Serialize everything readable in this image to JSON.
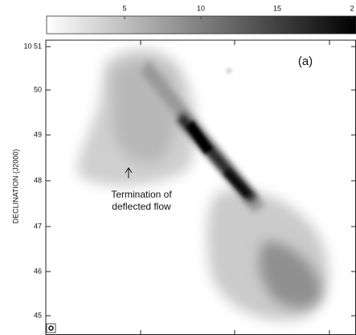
{
  "colorbar": {
    "ticks": [
      "5",
      "10",
      "15",
      "2"
    ]
  },
  "yaxis": {
    "label": "DECLINATION (J2000)",
    "ticks": [
      "10 51",
      "50",
      "49",
      "48",
      "47",
      "46",
      "45"
    ]
  },
  "panel_label": "(a)",
  "annotation": {
    "lines": [
      "Termination of",
      "deflected flow"
    ]
  }
}
